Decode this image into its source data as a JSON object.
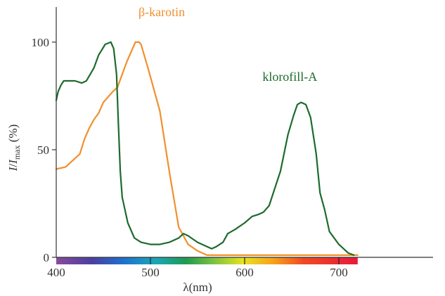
{
  "chart_data": {
    "type": "line",
    "xlabel": "λ(nm)",
    "ylabel": {
      "main": "I",
      "sep": "/",
      "sym": "I",
      "sub": "max",
      "unit": " (%)"
    },
    "xlim": [
      400,
      800
    ],
    "ylim": [
      0,
      115
    ],
    "x_ticks": [
      {
        "value": 400,
        "label": "400"
      },
      {
        "value": 500,
        "label": "500"
      },
      {
        "value": 600,
        "label": "600"
      },
      {
        "value": 700,
        "label": "700"
      }
    ],
    "y_ticks": [
      {
        "value": 0,
        "label": "0"
      },
      {
        "value": 50,
        "label": "50"
      },
      {
        "value": 100,
        "label": "100"
      }
    ],
    "spectrum_band": [
      400,
      720
    ],
    "series": [
      {
        "name": "β-karotin",
        "color": "#f0902e",
        "points": [
          [
            400,
            41
          ],
          [
            410,
            42
          ],
          [
            415,
            44
          ],
          [
            425,
            48
          ],
          [
            430,
            55
          ],
          [
            435,
            60
          ],
          [
            440,
            64
          ],
          [
            445,
            67
          ],
          [
            450,
            72
          ],
          [
            460,
            77
          ],
          [
            465,
            79
          ],
          [
            470,
            85
          ],
          [
            475,
            91
          ],
          [
            480,
            96
          ],
          [
            484,
            100
          ],
          [
            488,
            100
          ],
          [
            490,
            99
          ],
          [
            498,
            87
          ],
          [
            510,
            68
          ],
          [
            520,
            40
          ],
          [
            530,
            14
          ],
          [
            540,
            6
          ],
          [
            550,
            3
          ],
          [
            560,
            1
          ],
          [
            620,
            1
          ],
          [
            680,
            1
          ],
          [
            720,
            1
          ]
        ]
      },
      {
        "name": "klorofill-A",
        "color": "#1d6b2c",
        "points": [
          [
            400,
            73
          ],
          [
            402,
            77
          ],
          [
            405,
            80
          ],
          [
            408,
            82
          ],
          [
            415,
            82
          ],
          [
            420,
            82
          ],
          [
            427,
            81
          ],
          [
            432,
            82
          ],
          [
            440,
            88
          ],
          [
            445,
            94
          ],
          [
            452,
            99
          ],
          [
            458,
            100
          ],
          [
            461,
            97
          ],
          [
            464,
            85
          ],
          [
            466,
            62
          ],
          [
            468,
            40
          ],
          [
            470,
            28
          ],
          [
            476,
            16
          ],
          [
            483,
            9
          ],
          [
            490,
            7
          ],
          [
            500,
            6
          ],
          [
            510,
            6
          ],
          [
            520,
            7
          ],
          [
            530,
            9
          ],
          [
            535,
            11
          ],
          [
            540,
            10
          ],
          [
            550,
            7
          ],
          [
            560,
            5
          ],
          [
            565,
            4
          ],
          [
            570,
            5
          ],
          [
            577,
            7
          ],
          [
            582,
            11
          ],
          [
            590,
            13
          ],
          [
            600,
            16
          ],
          [
            608,
            19
          ],
          [
            615,
            20
          ],
          [
            620,
            21
          ],
          [
            626,
            24
          ],
          [
            638,
            40
          ],
          [
            646,
            57
          ],
          [
            652,
            66
          ],
          [
            656,
            71
          ],
          [
            660,
            72
          ],
          [
            665,
            71
          ],
          [
            670,
            65
          ],
          [
            676,
            48
          ],
          [
            680,
            30
          ],
          [
            685,
            22
          ],
          [
            690,
            12
          ],
          [
            700,
            6
          ],
          [
            710,
            2
          ],
          [
            716,
            1
          ]
        ]
      }
    ],
    "series_labels": [
      {
        "text": "β-karotin",
        "color": "#f0902e",
        "x": 512,
        "y": 112
      },
      {
        "text": "klorofill-A",
        "color": "#1d6b2c",
        "x": 648,
        "y": 82
      }
    ]
  }
}
